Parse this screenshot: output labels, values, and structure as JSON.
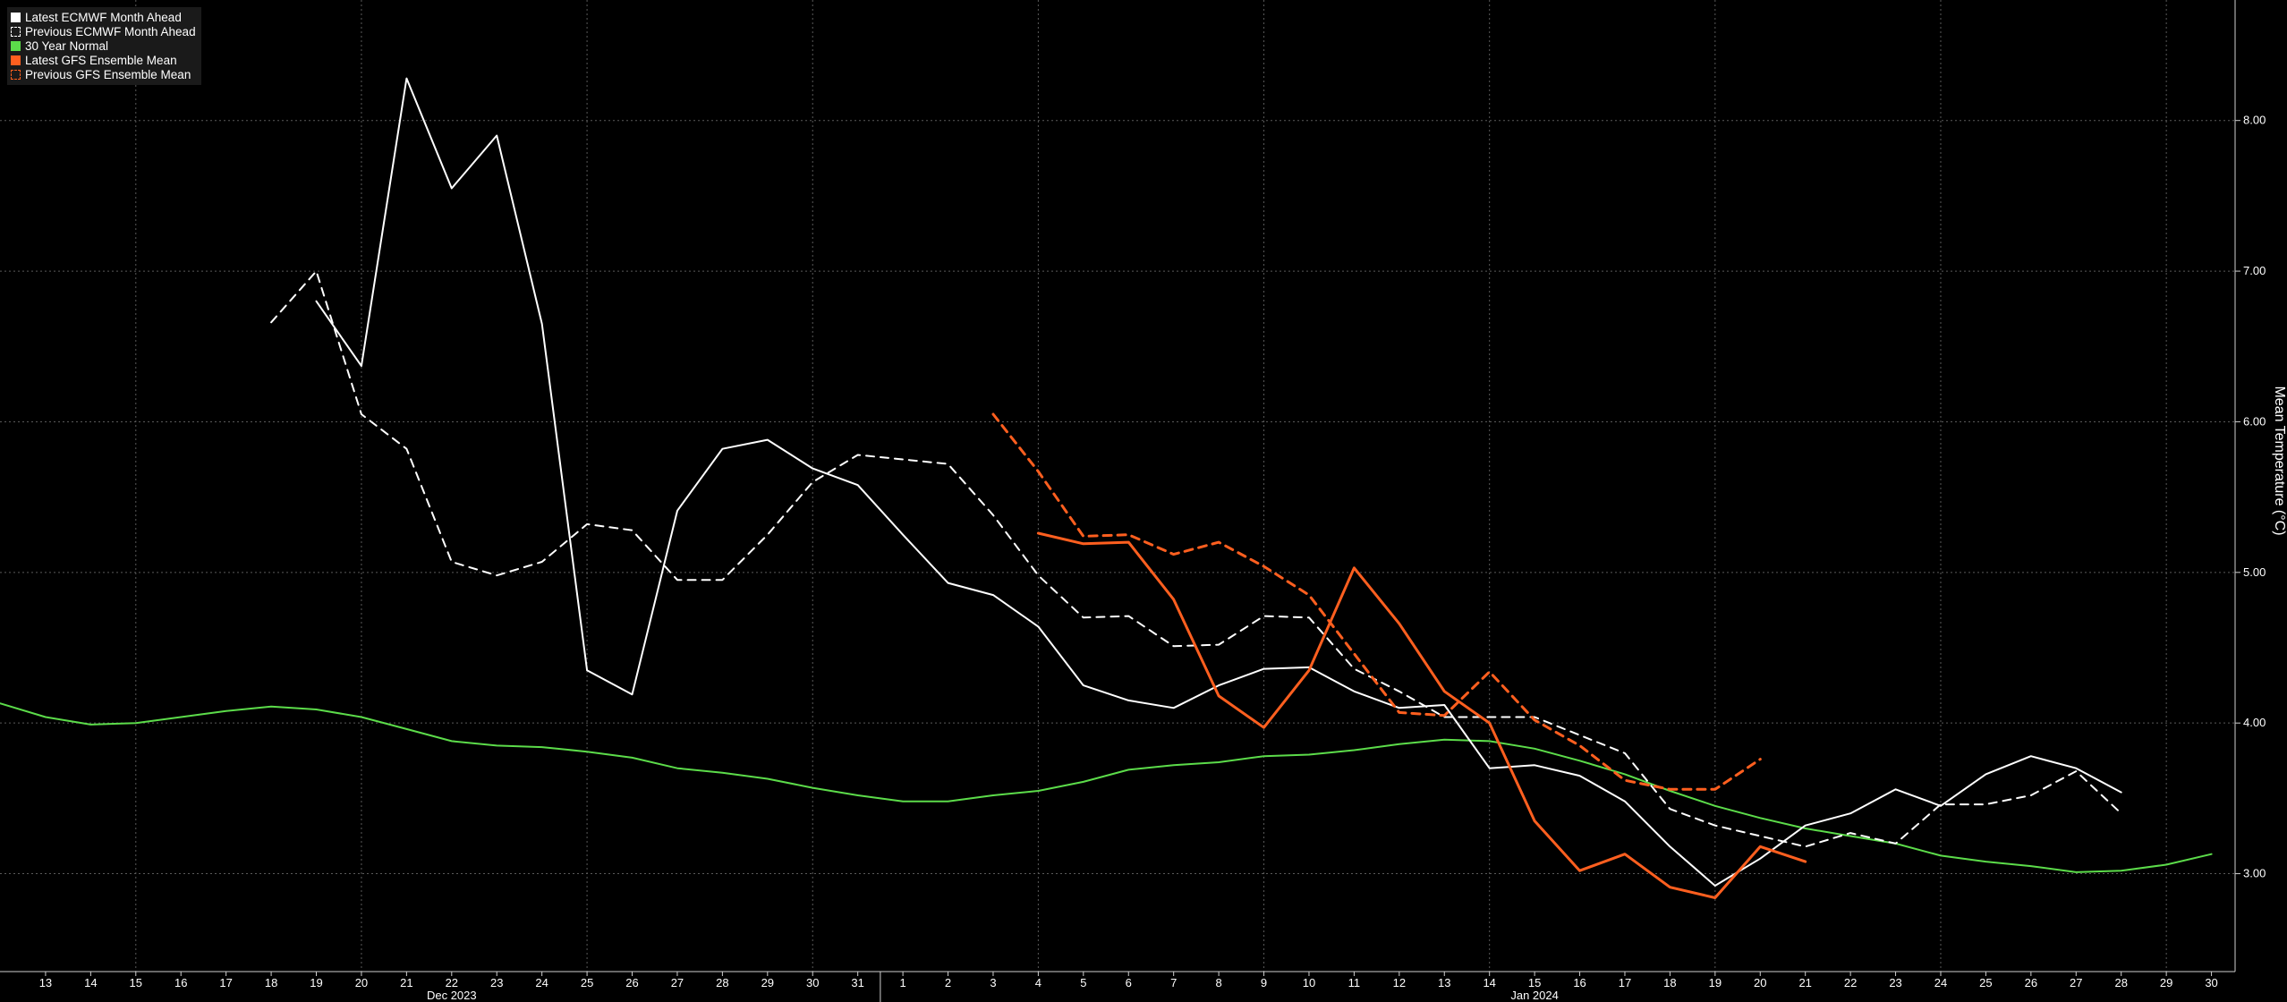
{
  "chart_data": {
    "type": "line",
    "title": "",
    "xlabel": "",
    "ylabel": "Mean Temperature (°C)",
    "ylim": [
      2.35,
      8.8
    ],
    "y_ticks": [
      "3.00",
      "4.00",
      "5.00",
      "6.00",
      "7.00",
      "8.00"
    ],
    "x_tick_labels": [
      "13",
      "14",
      "15",
      "16",
      "17",
      "18",
      "19",
      "20",
      "21",
      "22",
      "23",
      "24",
      "25",
      "26",
      "27",
      "28",
      "29",
      "30",
      "31",
      "1",
      "2",
      "3",
      "4",
      "5",
      "6",
      "7",
      "8",
      "9",
      "10",
      "11",
      "12",
      "13",
      "14",
      "15",
      "16",
      "17",
      "18",
      "19",
      "20",
      "21",
      "22",
      "23",
      "24",
      "25",
      "26",
      "27",
      "28",
      "29",
      "30"
    ],
    "month_labels": [
      {
        "label": "Dec 2023",
        "at": "2023-12-22"
      },
      {
        "label": "Jan 2024",
        "at": "2024-01-15"
      }
    ],
    "grid": true,
    "legend_position": "top-left",
    "series": [
      {
        "name": "Latest ECMWF Month Ahead",
        "color": "#ffffff",
        "style": "solid",
        "x": [
          "2023-12-19",
          "2023-12-20",
          "2023-12-21",
          "2023-12-22",
          "2023-12-23",
          "2023-12-24",
          "2023-12-25",
          "2023-12-26",
          "2023-12-27",
          "2023-12-28",
          "2023-12-29",
          "2023-12-30",
          "2023-12-31",
          "2024-01-01",
          "2024-01-02",
          "2024-01-03",
          "2024-01-04",
          "2024-01-05",
          "2024-01-06",
          "2024-01-07",
          "2024-01-08",
          "2024-01-09",
          "2024-01-10",
          "2024-01-11",
          "2024-01-12",
          "2024-01-13",
          "2024-01-14",
          "2024-01-15",
          "2024-01-16",
          "2024-01-17",
          "2024-01-18",
          "2024-01-19",
          "2024-01-20",
          "2024-01-21",
          "2024-01-22",
          "2024-01-23",
          "2024-01-24",
          "2024-01-25",
          "2024-01-26",
          "2024-01-27",
          "2024-01-28"
        ],
        "values": [
          6.8,
          6.37,
          8.28,
          7.55,
          7.9,
          6.65,
          4.35,
          4.19,
          5.41,
          5.82,
          5.88,
          5.69,
          5.58,
          5.25,
          4.93,
          4.85,
          4.64,
          4.25,
          4.15,
          4.1,
          4.25,
          4.36,
          4.37,
          4.21,
          4.1,
          4.12,
          3.7,
          3.72,
          3.65,
          3.48,
          3.18,
          2.92,
          3.1,
          3.32,
          3.4,
          3.56,
          3.45,
          3.66,
          3.78,
          3.7,
          3.54
        ]
      },
      {
        "name": "Previous ECMWF Month Ahead",
        "color": "#ffffff",
        "style": "dashed",
        "x": [
          "2023-12-18",
          "2023-12-19",
          "2023-12-20",
          "2023-12-21",
          "2023-12-22",
          "2023-12-23",
          "2023-12-24",
          "2023-12-25",
          "2023-12-26",
          "2023-12-27",
          "2023-12-28",
          "2023-12-29",
          "2023-12-30",
          "2023-12-31",
          "2024-01-01",
          "2024-01-02",
          "2024-01-03",
          "2024-01-04",
          "2024-01-05",
          "2024-01-06",
          "2024-01-07",
          "2024-01-08",
          "2024-01-09",
          "2024-01-10",
          "2024-01-11",
          "2024-01-12",
          "2024-01-13",
          "2024-01-14",
          "2024-01-15",
          "2024-01-16",
          "2024-01-17",
          "2024-01-18",
          "2024-01-19",
          "2024-01-20",
          "2024-01-21",
          "2024-01-22",
          "2024-01-23",
          "2024-01-24",
          "2024-01-25",
          "2024-01-26",
          "2024-01-27",
          "2024-01-28"
        ],
        "values": [
          6.66,
          7.0,
          6.05,
          5.82,
          5.07,
          4.98,
          5.07,
          5.32,
          5.28,
          4.95,
          4.95,
          5.25,
          5.6,
          5.78,
          5.75,
          5.72,
          5.38,
          4.98,
          4.7,
          4.71,
          4.51,
          4.52,
          4.71,
          4.7,
          4.36,
          4.21,
          4.04,
          4.04,
          4.04,
          3.92,
          3.8,
          3.43,
          3.32,
          3.25,
          3.18,
          3.27,
          3.2,
          3.46,
          3.46,
          3.52,
          3.68,
          3.4
        ]
      },
      {
        "name": "30 Year Normal",
        "color": "#5cdc4a",
        "style": "solid",
        "x": [
          "2023-12-12",
          "2023-12-13",
          "2023-12-14",
          "2023-12-15",
          "2023-12-16",
          "2023-12-17",
          "2023-12-18",
          "2023-12-19",
          "2023-12-20",
          "2023-12-21",
          "2023-12-22",
          "2023-12-23",
          "2023-12-24",
          "2023-12-25",
          "2023-12-26",
          "2023-12-27",
          "2023-12-28",
          "2023-12-29",
          "2023-12-30",
          "2023-12-31",
          "2024-01-01",
          "2024-01-02",
          "2024-01-03",
          "2024-01-04",
          "2024-01-05",
          "2024-01-06",
          "2024-01-07",
          "2024-01-08",
          "2024-01-09",
          "2024-01-10",
          "2024-01-11",
          "2024-01-12",
          "2024-01-13",
          "2024-01-14",
          "2024-01-15",
          "2024-01-16",
          "2024-01-17",
          "2024-01-18",
          "2024-01-19",
          "2024-01-20",
          "2024-01-21",
          "2024-01-22",
          "2024-01-23",
          "2024-01-24",
          "2024-01-25",
          "2024-01-26",
          "2024-01-27",
          "2024-01-28",
          "2024-01-29",
          "2024-01-30"
        ],
        "values": [
          4.13,
          4.04,
          3.99,
          4.0,
          4.04,
          4.08,
          4.11,
          4.09,
          4.04,
          3.96,
          3.88,
          3.85,
          3.84,
          3.81,
          3.77,
          3.7,
          3.67,
          3.63,
          3.57,
          3.52,
          3.48,
          3.48,
          3.52,
          3.55,
          3.61,
          3.69,
          3.72,
          3.74,
          3.78,
          3.79,
          3.82,
          3.86,
          3.89,
          3.88,
          3.83,
          3.75,
          3.66,
          3.55,
          3.45,
          3.37,
          3.3,
          3.25,
          3.2,
          3.12,
          3.08,
          3.05,
          3.01,
          3.02,
          3.06,
          3.13
        ]
      },
      {
        "name": "Latest GFS Ensemble Mean",
        "color": "#ff5f1f",
        "style": "solid",
        "x": [
          "2024-01-04",
          "2024-01-05",
          "2024-01-06",
          "2024-01-07",
          "2024-01-08",
          "2024-01-09",
          "2024-01-10",
          "2024-01-11",
          "2024-01-12",
          "2024-01-13",
          "2024-01-14",
          "2024-01-15",
          "2024-01-16",
          "2024-01-17",
          "2024-01-18",
          "2024-01-19",
          "2024-01-20",
          "2024-01-21"
        ],
        "values": [
          5.26,
          5.19,
          5.2,
          4.82,
          4.18,
          3.97,
          4.35,
          5.03,
          4.66,
          4.21,
          4.0,
          3.35,
          3.02,
          3.13,
          2.91,
          2.84,
          3.18,
          3.08
        ]
      },
      {
        "name": "Previous GFS Ensemble Mean",
        "color": "#ff5f1f",
        "style": "dashed",
        "x": [
          "2024-01-03",
          "2024-01-04",
          "2024-01-05",
          "2024-01-06",
          "2024-01-07",
          "2024-01-08",
          "2024-01-09",
          "2024-01-10",
          "2024-01-11",
          "2024-01-12",
          "2024-01-13",
          "2024-01-14",
          "2024-01-15",
          "2024-01-16",
          "2024-01-17",
          "2024-01-18",
          "2024-01-19",
          "2024-01-20"
        ],
        "values": [
          6.05,
          5.67,
          5.24,
          5.25,
          5.12,
          5.2,
          5.04,
          4.85,
          4.46,
          4.07,
          4.05,
          4.34,
          4.02,
          3.85,
          3.62,
          3.56,
          3.56,
          3.76
        ]
      }
    ]
  },
  "legend": {
    "items": [
      {
        "label": "Latest ECMWF Month Ahead",
        "color": "#ffffff",
        "style": "solid"
      },
      {
        "label": "Previous ECMWF Month Ahead",
        "color": "#ffffff",
        "style": "dashed"
      },
      {
        "label": "30 Year Normal",
        "color": "#5cdc4a",
        "style": "solid"
      },
      {
        "label": "Latest GFS Ensemble Mean",
        "color": "#ff5f1f",
        "style": "solid"
      },
      {
        "label": "Previous GFS Ensemble Mean",
        "color": "#ff5f1f",
        "style": "dashed"
      }
    ]
  },
  "colors": {
    "background": "#000000",
    "grid": "#5a5a5a",
    "axis": "#cfcfcf",
    "legend_background": "#1a1a1a",
    "ecmwf": "#ffffff",
    "normal": "#5cdc4a",
    "gfs": "#ff5f1f"
  }
}
